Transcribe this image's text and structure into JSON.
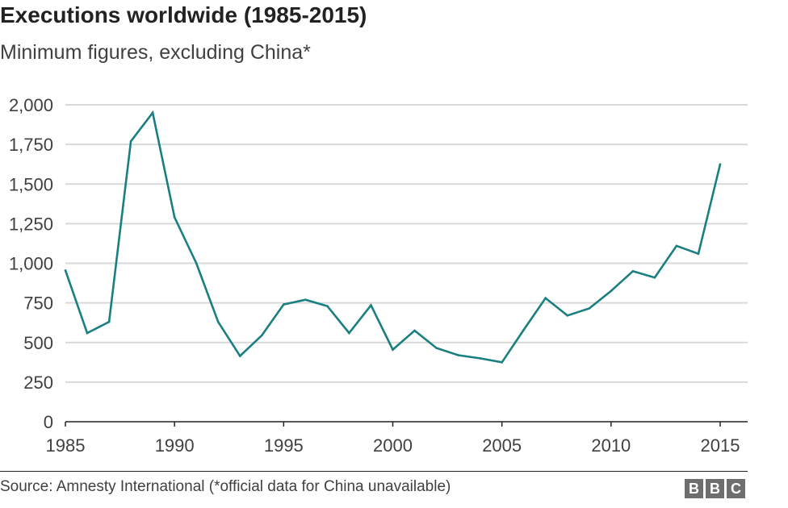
{
  "chart_data": {
    "type": "line",
    "title": "Executions worldwide (1985-2015)",
    "subtitle": "Minimum figures, excluding China*",
    "xlabel": "",
    "ylabel": "",
    "xlim": [
      1985,
      2015
    ],
    "ylim": [
      0,
      2000
    ],
    "x_ticks": [
      1985,
      1990,
      1995,
      2000,
      2005,
      2010,
      2015
    ],
    "x_tick_labels": [
      "1985",
      "1990",
      "1995",
      "2000",
      "2005",
      "2010",
      "2015"
    ],
    "y_ticks": [
      0,
      250,
      500,
      750,
      1000,
      1250,
      1500,
      1750,
      2000
    ],
    "y_tick_labels": [
      "0",
      "250",
      "500",
      "750",
      "1,000",
      "1,250",
      "1,500",
      "1,750",
      "2,000"
    ],
    "grid": true,
    "series": [
      {
        "color": "#1a7f80",
        "x": [
          1985,
          1986,
          1987,
          1988,
          1989,
          1990,
          1991,
          1992,
          1993,
          1994,
          1995,
          1996,
          1997,
          1998,
          1999,
          2000,
          2001,
          2002,
          2003,
          2004,
          2005,
          2006,
          2007,
          2008,
          2009,
          2010,
          2011,
          2012,
          2013,
          2014,
          2015
        ],
        "y": [
          955,
          560,
          630,
          1770,
          1950,
          1290,
          1000,
          630,
          415,
          545,
          740,
          770,
          730,
          560,
          735,
          455,
          575,
          465,
          420,
          400,
          375,
          580,
          780,
          670,
          715,
          825,
          950,
          910,
          1110,
          1060,
          1625
        ]
      }
    ],
    "source": "Source: Amnesty International (*official data for China unavailable)"
  },
  "logo": {
    "letters": [
      "B",
      "B",
      "C"
    ]
  },
  "colors": {
    "line": "#1a7f80",
    "grid": "#d9d9d9",
    "axis": "#222222",
    "logo_bg": "#6e6e6e"
  }
}
